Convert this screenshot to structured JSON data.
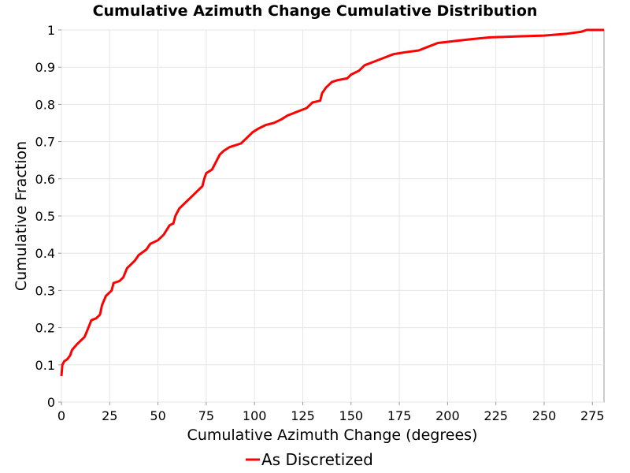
{
  "chart_data": {
    "type": "line",
    "title": "Cumulative Azimuth Change Cumulative Distribution",
    "xlabel": "Cumulative Azimuth Change (degrees)",
    "ylabel": "Cumulative Fraction",
    "xlim": [
      0,
      281
    ],
    "ylim": [
      0,
      1
    ],
    "x_ticks": [
      0,
      25,
      50,
      75,
      100,
      125,
      150,
      175,
      200,
      225,
      250,
      275
    ],
    "y_ticks": [
      0,
      0.1,
      0.2,
      0.3,
      0.4,
      0.5,
      0.6,
      0.7,
      0.8,
      0.9,
      1
    ],
    "grid": true,
    "legend_position": "bottom",
    "series": [
      {
        "name": "As Discretized",
        "color": "#ff0000",
        "points": [
          [
            0,
            0.07
          ],
          [
            0.5,
            0.1
          ],
          [
            1.5,
            0.11
          ],
          [
            3,
            0.115
          ],
          [
            4.5,
            0.125
          ],
          [
            5.5,
            0.14
          ],
          [
            8,
            0.155
          ],
          [
            10,
            0.165
          ],
          [
            12,
            0.175
          ],
          [
            14,
            0.2
          ],
          [
            15.5,
            0.22
          ],
          [
            18,
            0.225
          ],
          [
            20,
            0.235
          ],
          [
            21,
            0.26
          ],
          [
            23,
            0.285
          ],
          [
            26,
            0.3
          ],
          [
            27,
            0.32
          ],
          [
            30,
            0.325
          ],
          [
            32,
            0.335
          ],
          [
            34,
            0.36
          ],
          [
            36,
            0.37
          ],
          [
            38,
            0.38
          ],
          [
            40,
            0.395
          ],
          [
            44,
            0.41
          ],
          [
            46,
            0.425
          ],
          [
            50,
            0.435
          ],
          [
            53,
            0.45
          ],
          [
            56,
            0.475
          ],
          [
            58,
            0.48
          ],
          [
            59,
            0.5
          ],
          [
            61,
            0.52
          ],
          [
            64,
            0.535
          ],
          [
            67,
            0.55
          ],
          [
            70,
            0.565
          ],
          [
            73,
            0.58
          ],
          [
            74,
            0.6
          ],
          [
            75,
            0.615
          ],
          [
            78,
            0.625
          ],
          [
            80,
            0.645
          ],
          [
            82,
            0.665
          ],
          [
            84,
            0.675
          ],
          [
            87,
            0.685
          ],
          [
            90,
            0.69
          ],
          [
            93,
            0.695
          ],
          [
            96,
            0.71
          ],
          [
            99,
            0.725
          ],
          [
            102,
            0.735
          ],
          [
            106,
            0.745
          ],
          [
            110,
            0.75
          ],
          [
            114,
            0.76
          ],
          [
            117,
            0.77
          ],
          [
            122,
            0.78
          ],
          [
            127,
            0.79
          ],
          [
            130,
            0.805
          ],
          [
            134,
            0.81
          ],
          [
            135,
            0.83
          ],
          [
            137,
            0.845
          ],
          [
            140,
            0.86
          ],
          [
            143,
            0.865
          ],
          [
            148,
            0.87
          ],
          [
            150,
            0.88
          ],
          [
            154,
            0.89
          ],
          [
            157,
            0.905
          ],
          [
            162,
            0.915
          ],
          [
            167,
            0.925
          ],
          [
            172,
            0.935
          ],
          [
            178,
            0.94
          ],
          [
            185,
            0.945
          ],
          [
            190,
            0.955
          ],
          [
            195,
            0.965
          ],
          [
            203,
            0.97
          ],
          [
            212,
            0.975
          ],
          [
            222,
            0.98
          ],
          [
            238,
            0.983
          ],
          [
            250,
            0.985
          ],
          [
            262,
            0.99
          ],
          [
            269,
            0.995
          ],
          [
            272,
            1.0
          ],
          [
            281,
            1.0
          ]
        ]
      }
    ]
  }
}
